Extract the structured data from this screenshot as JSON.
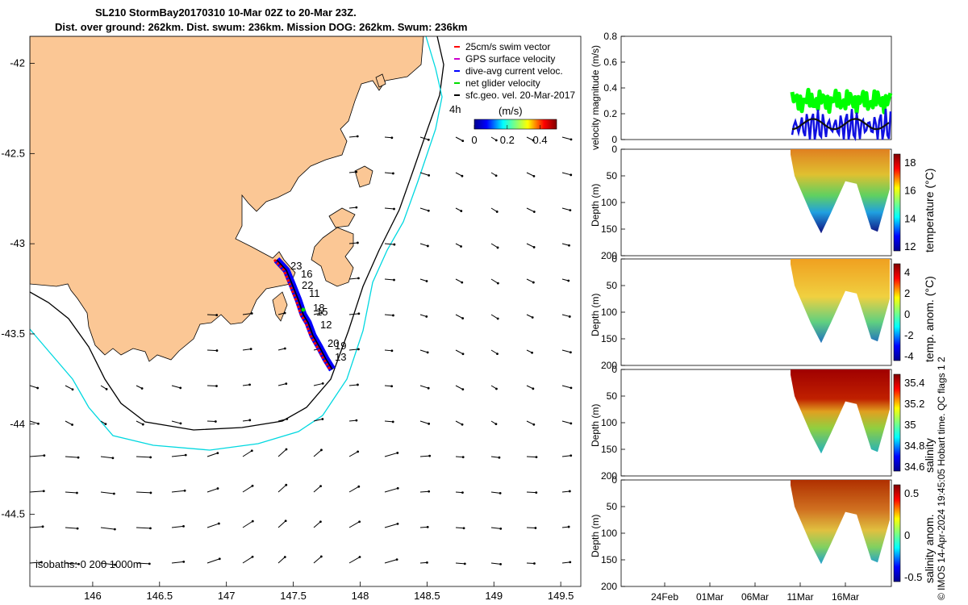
{
  "title_line1": "SL210 StormBay20170310 10-Mar 02Z to 20-Mar 23Z.",
  "title_line2": "Dist. over ground: 262km. Dist. swum: 236km. Mission DOG: 262km. Swum: 236km",
  "side_note": "© IMOS 14-Apr-2024 19:45:05 Hobart time. QC flags 1  2",
  "chart_data": [
    {
      "type": "scatter",
      "name": "map",
      "x_ticks": [
        "146",
        "146.5",
        "147",
        "147.5",
        "148",
        "148.5",
        "149",
        "149.5"
      ],
      "y_ticks": [
        "-42",
        "-42.5",
        "-43",
        "-43.5",
        "-44",
        "-44.5"
      ],
      "xlim": [
        145.53,
        149.65
      ],
      "ylim": [
        -44.9,
        -41.85
      ],
      "legend": {
        "position": "top-right",
        "entries": [
          {
            "label": "25cm/s swim vector",
            "color": "#ff0000"
          },
          {
            "label": "GPS surface velocity",
            "color": "#cc00cc"
          },
          {
            "label": "dive-avg current veloc.",
            "color": "#0000ff"
          },
          {
            "label": "net glider velocity",
            "color": "#00dd00"
          },
          {
            "label": "sfc.geo. vel. 20-Mar-2017",
            "color": "#000000"
          }
        ]
      },
      "colorbar": {
        "label": "(m/s)",
        "ticks": [
          "0",
          "0.2",
          "0.4"
        ],
        "range": [
          0,
          0.5
        ]
      },
      "isobaths_label": "isobaths: 0   200  1000m",
      "h_label": "4h",
      "track_labels": [
        "23",
        "16",
        "22",
        "11",
        "18",
        "15",
        "12",
        "20",
        "19",
        "13"
      ]
    },
    {
      "type": "line",
      "name": "velocity",
      "ylabel": "velocity magnitude (m/s)",
      "y_ticks": [
        "0",
        "0.2",
        "0.4",
        "0.6",
        "0.8"
      ],
      "ylim": [
        0,
        0.8
      ],
      "series_colors": [
        "#00ff00",
        "#1010e0",
        "#111111"
      ]
    },
    {
      "type": "heatmap",
      "name": "temperature",
      "ylabel": "Depth (m)",
      "y_ticks": [
        "0",
        "50",
        "100",
        "150",
        "200"
      ],
      "colorbar_label": "temperature (°C)",
      "colorbar_ticks": [
        "18",
        "16",
        "14",
        "12"
      ]
    },
    {
      "type": "heatmap",
      "name": "temp-anomaly",
      "ylabel": "Depth (m)",
      "y_ticks": [
        "0",
        "50",
        "100",
        "150",
        "200"
      ],
      "colorbar_label": "temp. anom. (°C)",
      "colorbar_ticks": [
        "4",
        "2",
        "0",
        "-2",
        "-4"
      ]
    },
    {
      "type": "heatmap",
      "name": "salinity",
      "ylabel": "Depth (m)",
      "y_ticks": [
        "0",
        "50",
        "100",
        "150",
        "200"
      ],
      "colorbar_label": "salinity",
      "colorbar_ticks": [
        "35.4",
        "35.2",
        "35",
        "34.8",
        "34.6"
      ]
    },
    {
      "type": "heatmap",
      "name": "salinity-anomaly",
      "ylabel": "Depth (m)",
      "y_ticks": [
        "0",
        "50",
        "100",
        "150",
        "200"
      ],
      "colorbar_label": "salinity anom.",
      "colorbar_ticks": [
        "0.5",
        "0",
        "-0.5"
      ],
      "x_ticks": [
        "24Feb",
        "01Mar",
        "06Mar",
        "11Mar",
        "16Mar"
      ]
    }
  ]
}
